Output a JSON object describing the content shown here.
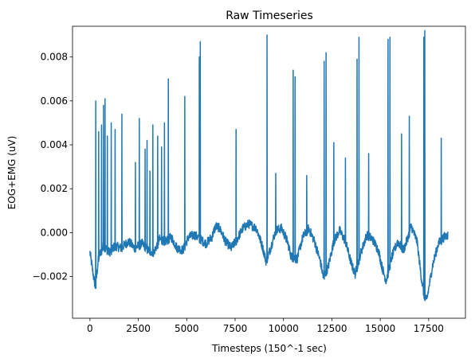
{
  "chart_data": {
    "type": "line",
    "title": "Raw Timeseries",
    "xlabel": "Timesteps (150^-1 sec)",
    "ylabel": "EOG+EMG (uV)",
    "xlim": [
      -900,
      19400
    ],
    "ylim": [
      -0.0039,
      0.0094
    ],
    "xticks": [
      0,
      2500,
      5000,
      7500,
      10000,
      12500,
      15000,
      17500
    ],
    "xtick_labels": [
      "0",
      "2500",
      "5000",
      "7500",
      "10000",
      "12500",
      "15000",
      "17500"
    ],
    "yticks": [
      -0.002,
      0.0,
      0.002,
      0.004,
      0.006,
      0.008
    ],
    "ytick_labels": [
      "−0.002",
      "0.000",
      "0.002",
      "0.004",
      "0.006",
      "0.008"
    ],
    "grid": false,
    "series": [
      {
        "color": "#1f77b4",
        "baseline": [
          [
            0,
            -0.0009
          ],
          [
            150,
            -0.0018
          ],
          [
            280,
            -0.0025
          ],
          [
            450,
            -0.0011
          ],
          [
            700,
            -0.0006
          ],
          [
            1000,
            -0.0009
          ],
          [
            1300,
            -0.0006
          ],
          [
            1600,
            -0.0007
          ],
          [
            2000,
            -0.0004
          ],
          [
            2300,
            -0.0007
          ],
          [
            2700,
            -0.0005
          ],
          [
            3000,
            -0.0008
          ],
          [
            3300,
            -0.0009
          ],
          [
            3600,
            -0.0003
          ],
          [
            3900,
            -0.0004
          ],
          [
            4200,
            -0.0002
          ],
          [
            4500,
            -0.0007
          ],
          [
            4800,
            -0.0008
          ],
          [
            5100,
            -0.0002
          ],
          [
            5400,
            -0.0001
          ],
          [
            5700,
            -0.0003
          ],
          [
            6000,
            -0.0005
          ],
          [
            6300,
            -0.0002
          ],
          [
            6500,
            0.0003
          ],
          [
            6700,
            0.0002
          ],
          [
            7000,
            -0.0004
          ],
          [
            7300,
            -0.0007
          ],
          [
            7600,
            -0.0003
          ],
          [
            7900,
            0.0002
          ],
          [
            8200,
            0.0004
          ],
          [
            8600,
            0.0002
          ],
          [
            8900,
            -0.0006
          ],
          [
            9100,
            -0.0013
          ],
          [
            9300,
            -0.0008
          ],
          [
            9600,
            0.0001
          ],
          [
            9900,
            0.0002
          ],
          [
            10200,
            -0.0004
          ],
          [
            10400,
            -0.0011
          ],
          [
            10700,
            -0.0012
          ],
          [
            11000,
            -0.0002
          ],
          [
            11300,
            0.0002
          ],
          [
            11600,
            -0.0004
          ],
          [
            11900,
            -0.0013
          ],
          [
            12050,
            -0.002
          ],
          [
            12300,
            -0.0016
          ],
          [
            12600,
            -0.0004
          ],
          [
            12900,
            0.0001
          ],
          [
            13200,
            -0.0004
          ],
          [
            13500,
            -0.0014
          ],
          [
            13700,
            -0.0019
          ],
          [
            14000,
            -0.0009
          ],
          [
            14300,
            -0.0001
          ],
          [
            14600,
            -0.0003
          ],
          [
            14900,
            -0.0008
          ],
          [
            15100,
            -0.0016
          ],
          [
            15300,
            -0.0022
          ],
          [
            15600,
            -0.0011
          ],
          [
            15900,
            -0.0004
          ],
          [
            16200,
            -0.0008
          ],
          [
            16400,
            -0.0003
          ],
          [
            16600,
            0.0003
          ],
          [
            16900,
            -0.0004
          ],
          [
            17100,
            -0.0019
          ],
          [
            17250,
            -0.0028
          ],
          [
            17400,
            -0.0031
          ],
          [
            17700,
            -0.0015
          ],
          [
            18000,
            -0.0005
          ],
          [
            18300,
            -0.0002
          ],
          [
            18500,
            -0.0001
          ]
        ],
        "spikes": [
          [
            300,
            0.006
          ],
          [
            450,
            0.0046
          ],
          [
            600,
            0.0049
          ],
          [
            700,
            0.0058
          ],
          [
            780,
            0.0061
          ],
          [
            900,
            0.0044
          ],
          [
            1100,
            0.005
          ],
          [
            1300,
            0.0047
          ],
          [
            1650,
            0.0054
          ],
          [
            2350,
            0.0032
          ],
          [
            2550,
            0.0052
          ],
          [
            2850,
            0.0038
          ],
          [
            2950,
            0.0042
          ],
          [
            3100,
            0.0028
          ],
          [
            3250,
            0.0049
          ],
          [
            3500,
            0.0044
          ],
          [
            3700,
            0.0039
          ],
          [
            3850,
            0.005
          ],
          [
            4050,
            0.007
          ],
          [
            4900,
            0.0062
          ],
          [
            5650,
            0.008
          ],
          [
            5700,
            0.0087
          ],
          [
            7550,
            0.0047
          ],
          [
            9150,
            0.009
          ],
          [
            9600,
            0.0027
          ],
          [
            10500,
            0.0074
          ],
          [
            10600,
            0.0071
          ],
          [
            11200,
            0.0026
          ],
          [
            12100,
            0.0078
          ],
          [
            12200,
            0.0082
          ],
          [
            12600,
            0.0041
          ],
          [
            13200,
            0.0034
          ],
          [
            13800,
            0.0079
          ],
          [
            13900,
            0.0089
          ],
          [
            14400,
            0.0036
          ],
          [
            15400,
            0.0088
          ],
          [
            15500,
            0.0089
          ],
          [
            16100,
            0.0045
          ],
          [
            16500,
            0.0053
          ],
          [
            17250,
            0.0089
          ],
          [
            17300,
            0.0092
          ],
          [
            18150,
            0.0043
          ]
        ]
      }
    ]
  }
}
